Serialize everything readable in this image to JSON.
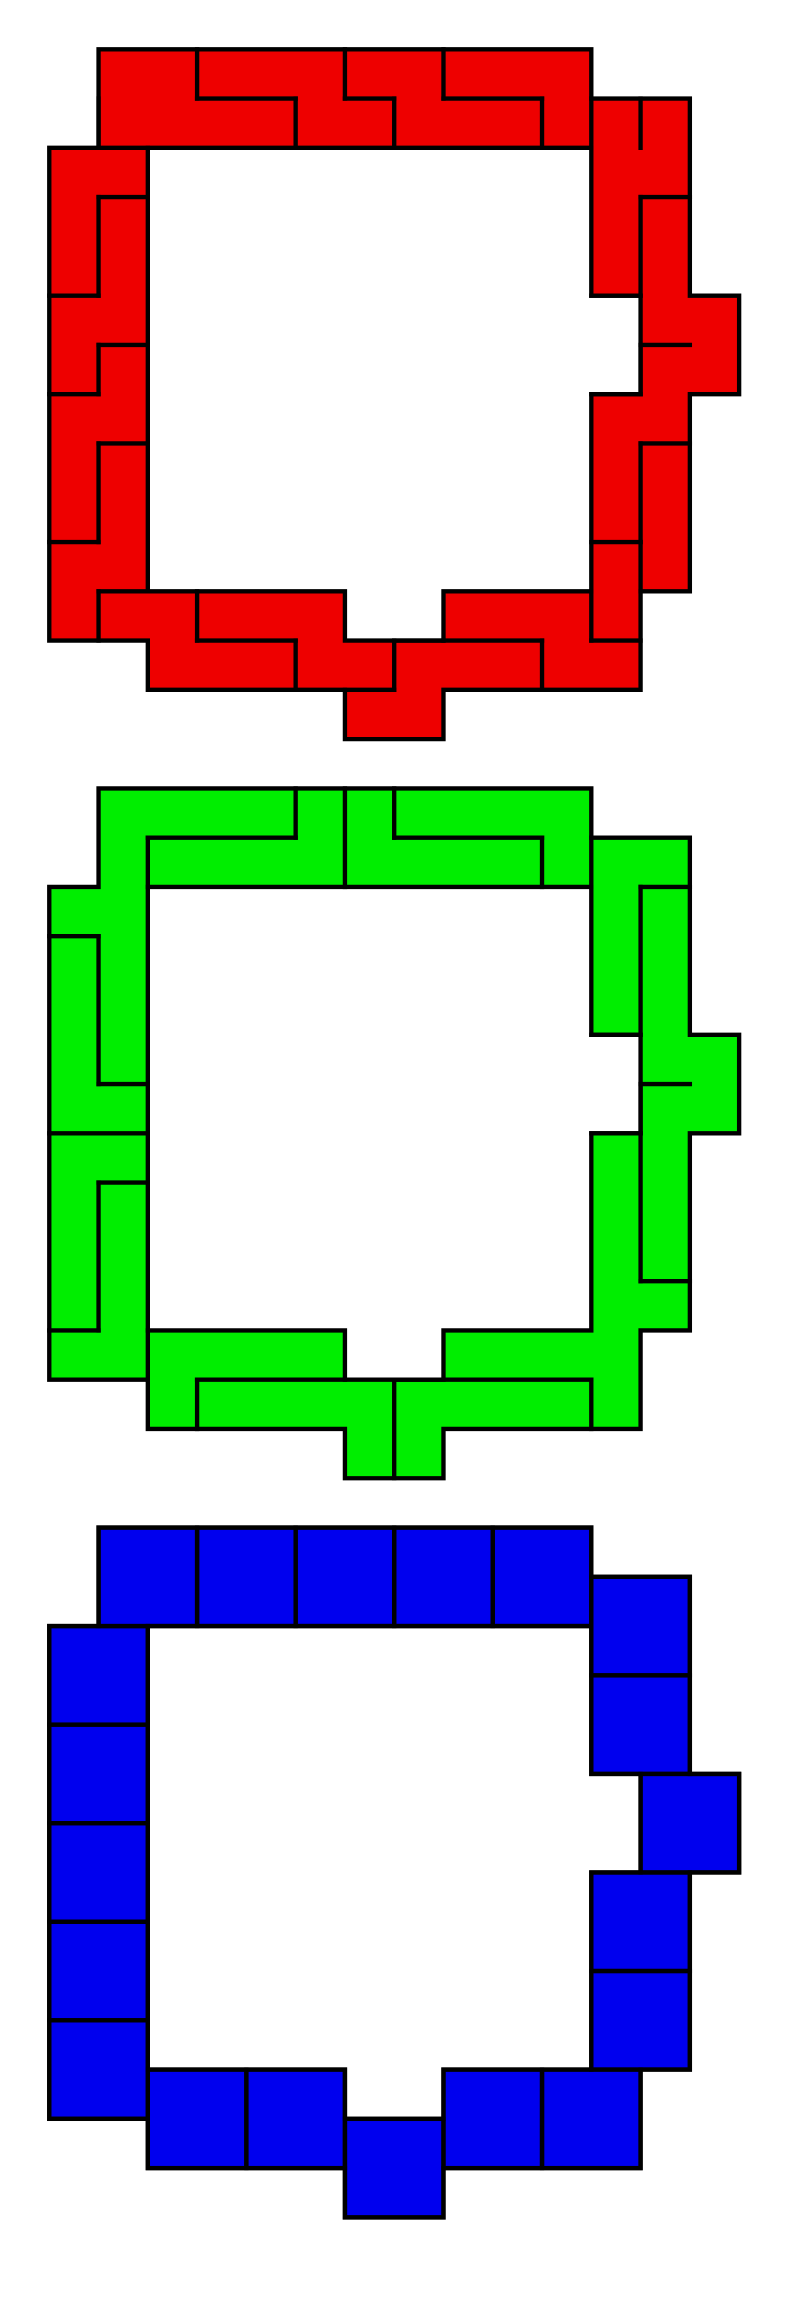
{
  "figures": [
    {
      "color": "#ee0000"
    },
    {
      "color": "#00ee00"
    },
    {
      "color": "#0000ee"
    }
  ]
}
